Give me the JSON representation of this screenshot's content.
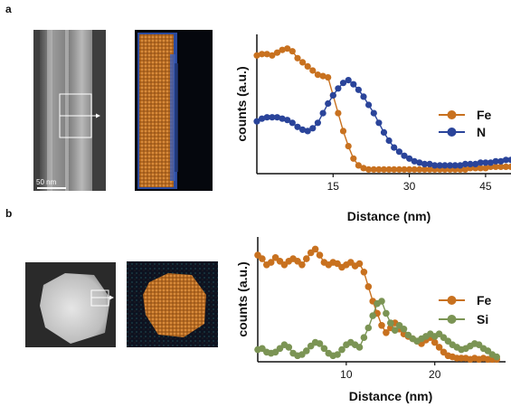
{
  "panels": [
    {
      "letter": "a",
      "scale_bar": "50 nm"
    },
    {
      "letter": "b"
    }
  ],
  "colors": {
    "fe": "#c8711f",
    "n": "#2a449a",
    "si": "#7b9454",
    "axis": "#111111"
  },
  "chart_data": [
    {
      "type": "line",
      "panel": "a",
      "xlabel": "Distance (nm)",
      "ylabel": "counts (a.u.)",
      "xlim": [
        0,
        50
      ],
      "ylim": [
        0,
        1
      ],
      "xticks": [
        15,
        30,
        45
      ],
      "x": [
        0,
        1,
        2,
        3,
        4,
        5,
        6,
        7,
        8,
        9,
        10,
        11,
        12,
        13,
        14,
        15,
        16,
        17,
        18,
        19,
        20,
        21,
        22,
        23,
        24,
        25,
        26,
        27,
        28,
        29,
        30,
        31,
        32,
        33,
        34,
        35,
        36,
        37,
        38,
        39,
        40,
        41,
        42,
        43,
        44,
        45,
        46,
        47,
        48,
        49,
        50
      ],
      "series": [
        {
          "name": "Fe",
          "color": "#c8711f",
          "values": [
            0.86,
            0.87,
            0.87,
            0.86,
            0.88,
            0.9,
            0.91,
            0.89,
            0.84,
            0.81,
            0.78,
            0.75,
            0.72,
            0.71,
            0.7,
            0.57,
            0.44,
            0.31,
            0.2,
            0.11,
            0.06,
            0.04,
            0.03,
            0.03,
            0.03,
            0.03,
            0.03,
            0.03,
            0.03,
            0.03,
            0.03,
            0.03,
            0.03,
            0.03,
            0.03,
            0.03,
            0.03,
            0.03,
            0.03,
            0.03,
            0.03,
            0.03,
            0.04,
            0.04,
            0.04,
            0.04,
            0.05,
            0.05,
            0.05,
            0.05,
            0.05
          ]
        },
        {
          "name": "N",
          "color": "#2a449a",
          "values": [
            0.38,
            0.4,
            0.41,
            0.41,
            0.41,
            0.4,
            0.39,
            0.37,
            0.34,
            0.32,
            0.31,
            0.33,
            0.37,
            0.44,
            0.51,
            0.57,
            0.62,
            0.66,
            0.68,
            0.65,
            0.61,
            0.56,
            0.5,
            0.44,
            0.37,
            0.3,
            0.24,
            0.19,
            0.16,
            0.13,
            0.11,
            0.09,
            0.08,
            0.07,
            0.07,
            0.06,
            0.06,
            0.06,
            0.06,
            0.06,
            0.06,
            0.07,
            0.07,
            0.07,
            0.08,
            0.08,
            0.08,
            0.09,
            0.09,
            0.1,
            0.1
          ]
        }
      ],
      "legend": [
        "Fe",
        "N"
      ],
      "legend_position": "right"
    },
    {
      "type": "line",
      "panel": "b",
      "xlabel": "Distance (nm)",
      "ylabel": "counts (a.u.)",
      "xlim": [
        0,
        28
      ],
      "ylim": [
        0,
        1
      ],
      "xticks": [
        10,
        20
      ],
      "x": [
        0,
        0.5,
        1,
        1.5,
        2,
        2.5,
        3,
        3.5,
        4,
        4.5,
        5,
        5.5,
        6,
        6.5,
        7,
        7.5,
        8,
        8.5,
        9,
        9.5,
        10,
        10.5,
        11,
        11.5,
        12,
        12.5,
        13,
        13.5,
        14,
        14.5,
        15,
        15.5,
        16,
        16.5,
        17,
        17.5,
        18,
        18.5,
        19,
        19.5,
        20,
        20.5,
        21,
        21.5,
        22,
        22.5,
        23,
        23.5,
        24,
        24.5,
        25,
        25.5,
        26,
        26.5,
        27
      ],
      "series": [
        {
          "name": "Fe",
          "color": "#c8711f",
          "values": [
            0.88,
            0.85,
            0.8,
            0.82,
            0.86,
            0.83,
            0.8,
            0.83,
            0.85,
            0.83,
            0.8,
            0.85,
            0.9,
            0.93,
            0.88,
            0.82,
            0.8,
            0.82,
            0.81,
            0.78,
            0.8,
            0.82,
            0.79,
            0.81,
            0.74,
            0.62,
            0.5,
            0.4,
            0.3,
            0.24,
            0.28,
            0.32,
            0.27,
            0.23,
            0.21,
            0.19,
            0.17,
            0.15,
            0.18,
            0.2,
            0.16,
            0.12,
            0.08,
            0.05,
            0.04,
            0.03,
            0.03,
            0.03,
            0.02,
            0.03,
            0.02,
            0.03,
            0.02,
            0.02,
            0.02
          ]
        },
        {
          "name": "Si",
          "color": "#7b9454",
          "values": [
            0.1,
            0.11,
            0.08,
            0.07,
            0.08,
            0.11,
            0.14,
            0.12,
            0.07,
            0.05,
            0.06,
            0.09,
            0.13,
            0.16,
            0.15,
            0.11,
            0.07,
            0.05,
            0.06,
            0.1,
            0.14,
            0.16,
            0.14,
            0.12,
            0.2,
            0.28,
            0.38,
            0.48,
            0.5,
            0.4,
            0.32,
            0.26,
            0.3,
            0.27,
            0.22,
            0.19,
            0.17,
            0.19,
            0.21,
            0.23,
            0.21,
            0.23,
            0.2,
            0.17,
            0.14,
            0.12,
            0.1,
            0.11,
            0.13,
            0.15,
            0.14,
            0.11,
            0.09,
            0.06,
            0.04
          ]
        }
      ],
      "legend": [
        "Fe",
        "Si"
      ],
      "legend_position": "right"
    }
  ]
}
